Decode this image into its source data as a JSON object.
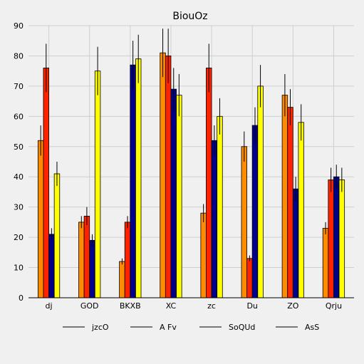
{
  "chart_data": {
    "type": "bar",
    "title": "BiouOz",
    "xlabel": "",
    "ylabel": "",
    "ylim": [
      0,
      90
    ],
    "yticks": [
      0,
      10,
      20,
      30,
      40,
      50,
      60,
      70,
      80,
      90
    ],
    "grid": true,
    "legend_position": "bottom",
    "categories": [
      "dj",
      "GOD",
      "BKXB",
      "XC",
      "zc",
      "Du",
      "ZO",
      "Qrju"
    ],
    "series": [
      {
        "name": "jzcO",
        "color": "#ff8c00",
        "values": [
          52,
          25,
          12,
          81,
          28,
          50,
          67,
          23
        ],
        "errors": [
          5,
          2,
          1,
          8,
          3,
          5,
          7,
          2
        ]
      },
      {
        "name": "A Fv",
        "color": "#ff2200",
        "values": [
          76,
          27,
          25,
          80,
          76,
          13,
          63,
          39
        ],
        "errors": [
          8,
          3,
          2,
          9,
          8,
          1,
          6,
          4
        ]
      },
      {
        "name": "SoQUd",
        "color": "#00008b",
        "values": [
          21,
          19,
          77,
          69,
          52,
          57,
          36,
          40
        ],
        "errors": [
          2,
          2,
          8,
          7,
          5,
          6,
          4,
          4
        ]
      },
      {
        "name": "AsS",
        "color": "#ffff00",
        "values": [
          41,
          75,
          79,
          67,
          60,
          70,
          58,
          39
        ],
        "errors": [
          4,
          8,
          8,
          7,
          6,
          7,
          6,
          4
        ]
      }
    ]
  }
}
